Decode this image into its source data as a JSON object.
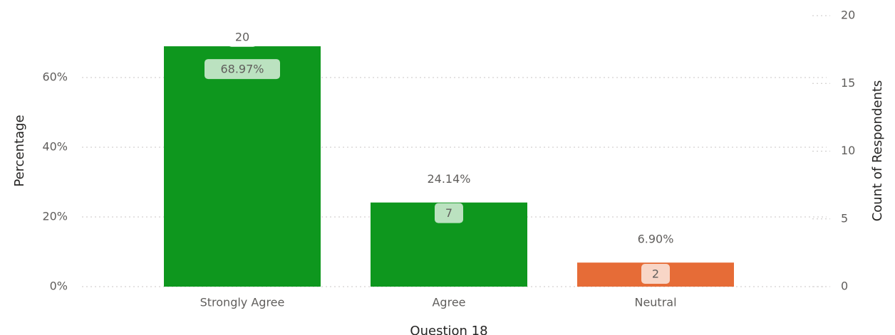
{
  "chart_data": {
    "type": "bar",
    "x_label": "Question 18",
    "y_label": "Percentage",
    "y2_label": "Count of Respondents",
    "categories": [
      "Strongly Agree",
      "Agree",
      "Neutral"
    ],
    "series": [
      {
        "name": "Percentage",
        "colors": [
          "#0e971e",
          "#0e971e",
          "#e66c37"
        ],
        "values": [
          68.97,
          24.14,
          6.9
        ],
        "value_labels": [
          "68.97%",
          "24.14%",
          "6.90%"
        ]
      },
      {
        "name": "Count of Respondents",
        "axis": "y2",
        "values": [
          20,
          7,
          2
        ]
      }
    ],
    "ylim": [
      0,
      77.76
    ],
    "yticks": [
      {
        "value": 0,
        "label": "0%"
      },
      {
        "value": 20,
        "label": "20%"
      },
      {
        "value": 40,
        "label": "40%"
      },
      {
        "value": 60,
        "label": "60%"
      }
    ],
    "y2lim": [
      0,
      20
    ],
    "y2ticks": [
      0,
      5,
      10,
      15,
      20
    ],
    "grid": true
  }
}
